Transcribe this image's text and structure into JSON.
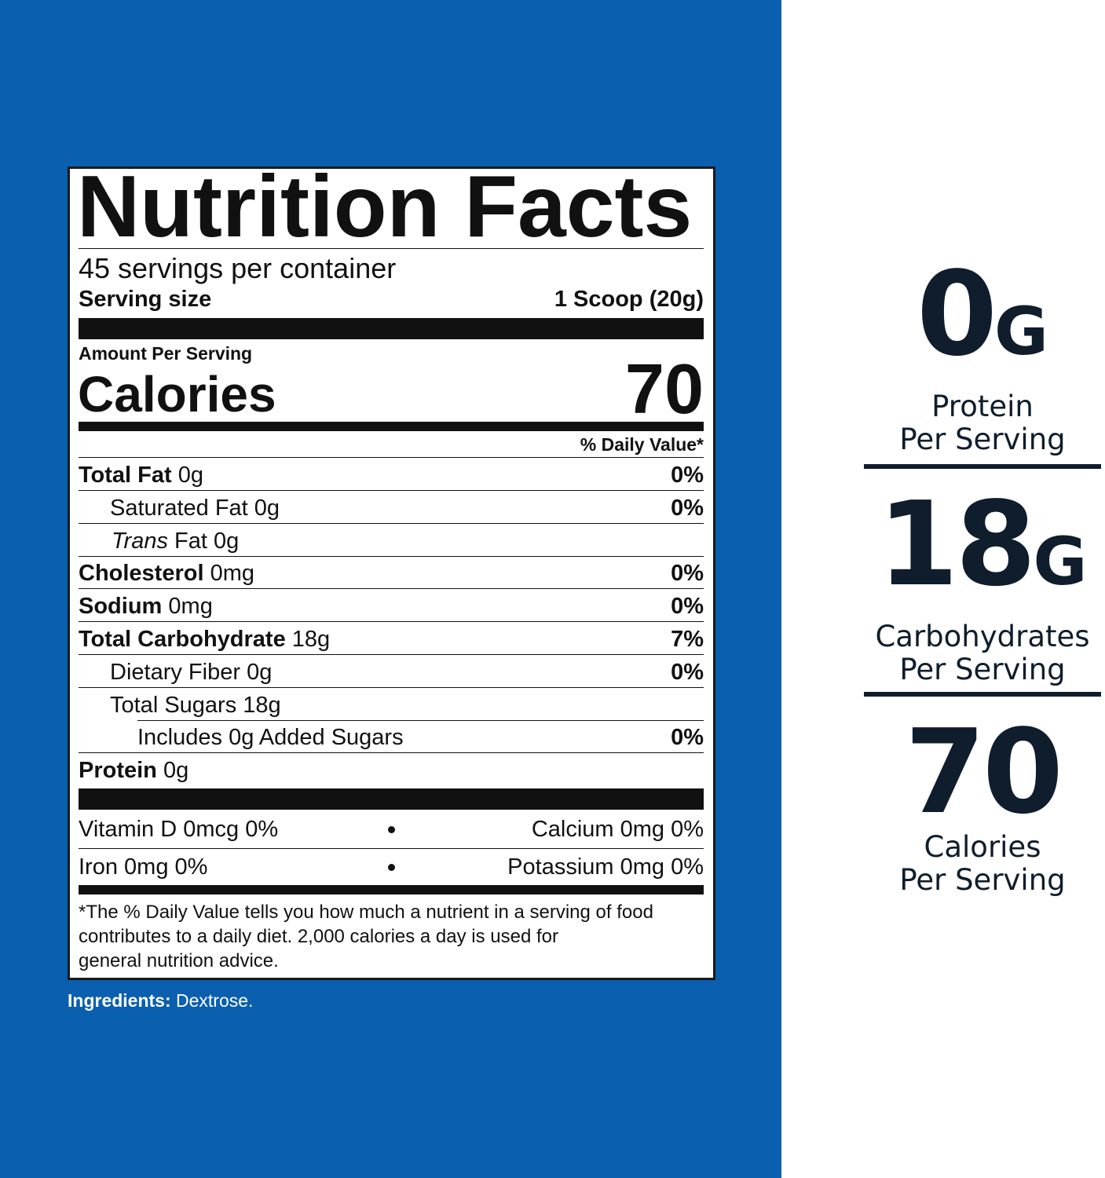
{
  "label": {
    "title": "Nutrition Facts",
    "servings": "45 servings per container",
    "serving_size_label": "Serving size",
    "serving_size_value": "1 Scoop (20g)",
    "amount_per_serving": "Amount Per Serving",
    "calories_label": "Calories",
    "calories_value": "70",
    "daily_value_header": "% Daily Value*",
    "rows": [
      {
        "name": "Total Fat",
        "amount": "0g",
        "dv": "0%"
      },
      {
        "name": "Saturated Fat",
        "amount": "0g",
        "dv": "0%"
      },
      {
        "name_italic": "Trans",
        "name": "Fat",
        "amount": "0g"
      },
      {
        "name": "Cholesterol",
        "amount": "0mg",
        "dv": "0%"
      },
      {
        "name": "Sodium",
        "amount": "0mg",
        "dv": "0%"
      },
      {
        "name": "Total Carbohydrate",
        "amount": "18g",
        "dv": "7%"
      },
      {
        "name": "Dietary Fiber",
        "amount": "0g",
        "dv": "0%"
      },
      {
        "name": "Total Sugars",
        "amount": "18g"
      },
      {
        "name": "Includes 0g Added Sugars",
        "dv": "0%"
      },
      {
        "name": "Protein",
        "amount": "0g"
      }
    ],
    "vitamins": [
      {
        "left": "Vitamin D  0mcg  0%",
        "right": "Calcium  0mg  0%"
      },
      {
        "left": "Iron  0mg  0%",
        "right": "Potassium  0mg  0%"
      }
    ],
    "footnote": [
      "*The % Daily Value tells you how much a nutrient in a serving of food",
      "contributes to a daily diet. 2,000 calories a day is used for",
      "general nutrition advice."
    ]
  },
  "ingredients": {
    "label": "Ingredients:",
    "text": "Dextrose."
  },
  "highlights": [
    {
      "value": "0",
      "unit": "G",
      "caption": [
        "Protein",
        "Per Serving"
      ]
    },
    {
      "value": "18",
      "unit": "G",
      "caption": [
        "Carbohydrates",
        "Per Serving"
      ]
    },
    {
      "value": "70",
      "caption": [
        "Calories",
        "Per Serving"
      ]
    }
  ]
}
